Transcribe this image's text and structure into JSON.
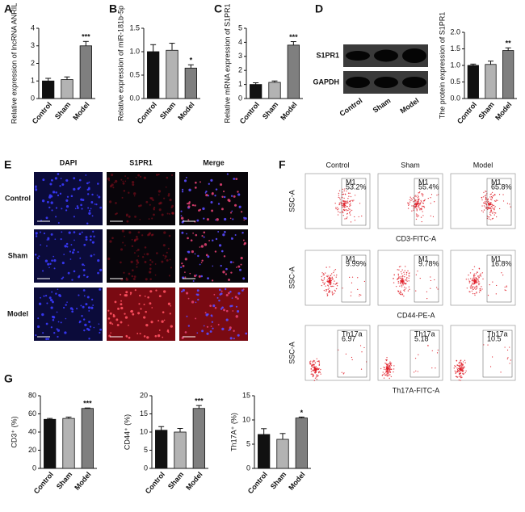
{
  "chart_data": [
    {
      "type": "bar",
      "panel": "A",
      "y_label": "Relative expression of lncRNA ANRIL",
      "categories": [
        "Control",
        "Sham",
        "Model"
      ],
      "values": [
        1.0,
        1.08,
        3.0
      ],
      "errors": [
        0.15,
        0.15,
        0.25
      ],
      "significance": [
        null,
        null,
        "***"
      ],
      "colors": [
        "#111111",
        "#b3b3b3",
        "#7f7f7f"
      ],
      "ylim": [
        0,
        4
      ],
      "yticks": [
        0,
        1,
        2,
        3,
        4
      ]
    },
    {
      "type": "bar",
      "panel": "B",
      "y_label": "Relative expression of miR-181b-5p",
      "categories": [
        "Control",
        "Sham",
        "Model"
      ],
      "values": [
        1.0,
        1.03,
        0.65
      ],
      "errors": [
        0.15,
        0.15,
        0.07
      ],
      "significance": [
        null,
        null,
        "*"
      ],
      "colors": [
        "#111111",
        "#b3b3b3",
        "#7f7f7f"
      ],
      "ylim": [
        0,
        1.5
      ],
      "yticks": [
        {
          "value": 0,
          "label": "0.0"
        },
        {
          "value": 0.5,
          "label": "0.5"
        },
        {
          "value": 1,
          "label": "1.0"
        },
        {
          "value": 1.5,
          "label": "1.5"
        }
      ]
    },
    {
      "type": "bar",
      "panel": "C",
      "y_label": "Relative mRNA expression of S1PR1",
      "categories": [
        "Control",
        "Sham",
        "Model"
      ],
      "values": [
        1.0,
        1.15,
        3.8
      ],
      "errors": [
        0.12,
        0.1,
        0.25
      ],
      "significance": [
        null,
        null,
        "***"
      ],
      "colors": [
        "#111111",
        "#b3b3b3",
        "#7f7f7f"
      ],
      "ylim": [
        0,
        5
      ],
      "yticks": [
        0,
        1,
        2,
        3,
        4,
        5
      ]
    },
    {
      "type": "bar",
      "y_label": "The protein expression of S1PR1",
      "categories": [
        "Control",
        "Sham",
        "Model"
      ],
      "values": [
        1.0,
        1.03,
        1.45
      ],
      "errors": [
        0.04,
        0.1,
        0.08
      ],
      "significance": [
        null,
        null,
        "**"
      ],
      "colors": [
        "#111111",
        "#b3b3b3",
        "#7f7f7f"
      ],
      "ylim": [
        0,
        2
      ],
      "yticks": [
        {
          "value": 0,
          "label": "0.0"
        },
        {
          "value": 0.5,
          "label": "0.5"
        },
        {
          "value": 1,
          "label": "1.0"
        },
        {
          "value": 1.5,
          "label": "1.5"
        },
        {
          "value": 2,
          "label": "2.0"
        }
      ]
    },
    {
      "type": "bar",
      "panel": "G",
      "y_label": "CD3⁺ (%)",
      "categories": [
        "Control",
        "Sham",
        "Model"
      ],
      "values": [
        54,
        55,
        66
      ],
      "errors": [
        1,
        1.5,
        0.5
      ],
      "significance": [
        null,
        null,
        "***"
      ],
      "colors": [
        "#111111",
        "#b3b3b3",
        "#7f7f7f"
      ],
      "ylim": [
        0,
        80
      ],
      "yticks": [
        0,
        20,
        40,
        60,
        80
      ]
    },
    {
      "type": "bar",
      "y_label": "CD44⁺ (%)",
      "categories": [
        "Control",
        "Sham",
        "Model"
      ],
      "values": [
        10.5,
        10,
        16.5
      ],
      "errors": [
        1,
        1,
        0.8
      ],
      "significance": [
        null,
        null,
        "***"
      ],
      "colors": [
        "#111111",
        "#b3b3b3",
        "#7f7f7f"
      ],
      "ylim": [
        0,
        20
      ],
      "yticks": [
        0,
        5,
        10,
        15,
        20
      ]
    },
    {
      "type": "bar",
      "y_label": "Th17A⁺ (%)",
      "categories": [
        "Control",
        "Sham",
        "Model"
      ],
      "values": [
        7,
        6,
        10.4
      ],
      "errors": [
        1.2,
        1.2,
        0.2
      ],
      "significance": [
        null,
        null,
        "*"
      ],
      "colors": [
        "#111111",
        "#b3b3b3",
        "#7f7f7f"
      ],
      "ylim": [
        0,
        15
      ],
      "yticks": [
        0,
        5,
        10,
        15
      ]
    }
  ],
  "blot": {
    "panel": "D",
    "bands": [
      "S1PR1",
      "GAPDH"
    ],
    "lanes": [
      "Control",
      "Sham",
      "Model"
    ]
  },
  "microscopy": {
    "panel": "E",
    "columns": [
      "DAPI",
      "S1PR1",
      "Merge"
    ],
    "rows": [
      "Control",
      "Sham",
      "Model"
    ]
  },
  "flow": {
    "panel": "F",
    "columns": [
      "Control",
      "Sham",
      "Model"
    ],
    "rows": [
      {
        "y_label": "SSC-A",
        "x_label": "CD3-FITC-A",
        "gate": "M1",
        "gate_values": [
          "53.2%",
          "55.4%",
          "65.8%"
        ]
      },
      {
        "y_label": "SSC-A",
        "x_label": "CD44-PE-A",
        "gate": "M1",
        "gate_values": [
          "9.99%",
          "9.78%",
          "16.8%"
        ]
      },
      {
        "y_label": "SSC-A",
        "x_label": "Th17A-FITC-A",
        "gate": "Th17a",
        "gate_values": [
          "6.97",
          "5.18",
          "10.5"
        ]
      }
    ]
  }
}
